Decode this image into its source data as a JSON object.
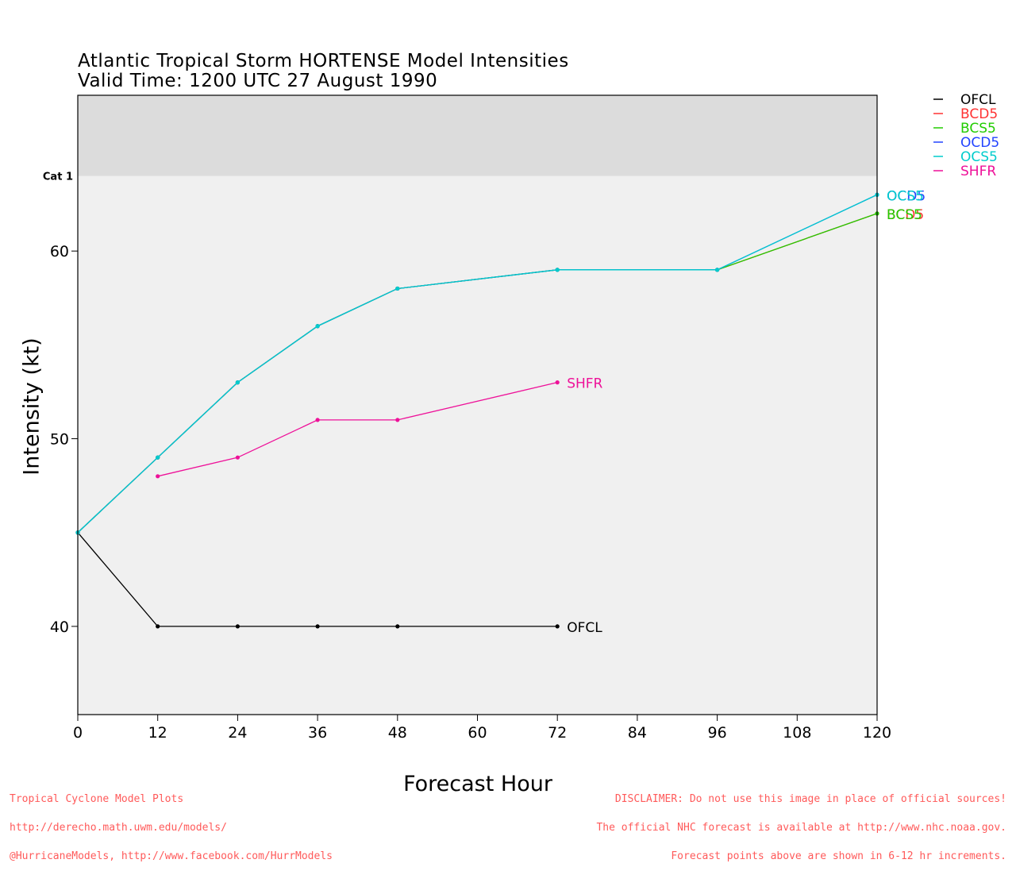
{
  "title": "Atlantic Tropical Storm HORTENSE Model Intensities",
  "subtitle": "Valid Time: 1200 UTC 27 August 1990",
  "footer_left": [
    "Tropical Cyclone Model Plots",
    "http://derecho.math.uwm.edu/models/",
    "@HurricaneModels, http://www.facebook.com/HurrModels"
  ],
  "footer_right": [
    "DISCLAIMER: Do not use this image in place of official sources!",
    "The official NHC forecast is available at http://www.nhc.noaa.gov.",
    "Forecast points above are shown in 6-12 hr increments."
  ],
  "colors": {
    "plot_bg": "#f0f0f0",
    "cat_band": "#dcdcdc",
    "footer": "#ff5a5a"
  },
  "chart_data": {
    "type": "line",
    "title": "Atlantic Tropical Storm HORTENSE Model Intensities",
    "subtitle": "Valid Time: 1200 UTC 27 August 1990",
    "xlabel": "Forecast Hour",
    "ylabel": "Intensity (kt)",
    "xlim": [
      0,
      120
    ],
    "ylim": [
      35.3,
      68.3
    ],
    "xticks": [
      0,
      12,
      24,
      36,
      48,
      60,
      72,
      84,
      96,
      108,
      120
    ],
    "yticks": [
      40,
      50,
      60
    ],
    "category_band": {
      "label": "Cat 1",
      "from": 64
    },
    "legend_position": "top-right, outside plot",
    "grid": false,
    "series": [
      {
        "name": "OFCL",
        "color": "#000000",
        "x": [
          0,
          12,
          24,
          36,
          48,
          72
        ],
        "y": [
          45,
          40,
          40,
          40,
          40,
          40
        ],
        "end_label": "OFCL"
      },
      {
        "name": "BCD5",
        "color": "#ff3333",
        "x": [
          0,
          12,
          24,
          36,
          48,
          72,
          96,
          120
        ],
        "y": [
          45,
          49,
          53,
          56,
          58,
          59,
          59,
          62
        ],
        "end_label": "BCD5"
      },
      {
        "name": "BCS5",
        "color": "#22cc00",
        "x": [
          0,
          12,
          24,
          36,
          48,
          72,
          96,
          120
        ],
        "y": [
          45,
          49,
          53,
          56,
          58,
          59,
          59,
          62
        ],
        "end_label": "BCS5"
      },
      {
        "name": "OCD5",
        "color": "#2244ff",
        "x": [
          0,
          12,
          24,
          36,
          48,
          72,
          96,
          120
        ],
        "y": [
          45,
          49,
          53,
          56,
          58,
          59,
          59,
          63
        ],
        "end_label": "OCD5"
      },
      {
        "name": "OCS5",
        "color": "#00cccc",
        "x": [
          0,
          12,
          24,
          36,
          48,
          72,
          96,
          120
        ],
        "y": [
          45,
          49,
          53,
          56,
          58,
          59,
          59,
          63
        ],
        "end_label": "OCS5"
      },
      {
        "name": "SHFR",
        "color": "#ee1199",
        "x": [
          12,
          24,
          36,
          48,
          72
        ],
        "y": [
          48,
          49,
          51,
          51,
          53
        ],
        "end_label": "SHFR"
      }
    ]
  }
}
